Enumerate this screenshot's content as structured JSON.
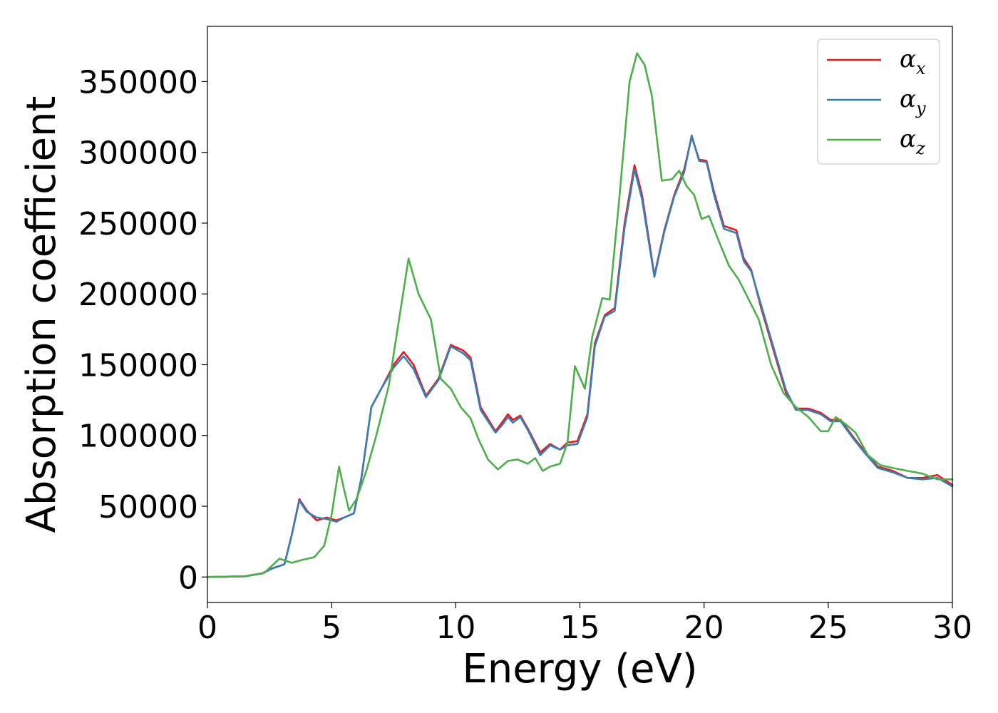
{
  "chart_data": {
    "type": "line",
    "title": "",
    "xlabel": "Energy (eV)",
    "ylabel": "Absorption coefficient",
    "xlim": [
      0,
      30
    ],
    "ylim": [
      -18000,
      389000
    ],
    "xticks": [
      0,
      5,
      10,
      15,
      20,
      25,
      30
    ],
    "xtick_labels": [
      "0",
      "5",
      "10",
      "15",
      "20",
      "25",
      "30"
    ],
    "yticks": [
      0,
      50000,
      100000,
      150000,
      200000,
      250000,
      300000,
      350000
    ],
    "ytick_labels": [
      "0",
      "50000",
      "100000",
      "150000",
      "200000",
      "250000",
      "300000",
      "350000"
    ],
    "grid": false,
    "legend_position": "top-right",
    "series": [
      {
        "name": "αx",
        "legend_base": "α",
        "legend_sub": "x",
        "color": "#e41a1c",
        "points": [
          [
            0,
            0
          ],
          [
            1.5,
            500
          ],
          [
            2.2,
            2500
          ],
          [
            2.6,
            6000
          ],
          [
            3.1,
            9000
          ],
          [
            3.4,
            30000
          ],
          [
            3.7,
            55000
          ],
          [
            4.0,
            47000
          ],
          [
            4.4,
            40000
          ],
          [
            4.8,
            42000
          ],
          [
            5.2,
            40000
          ],
          [
            5.5,
            42000
          ],
          [
            5.9,
            45000
          ],
          [
            6.2,
            70000
          ],
          [
            6.6,
            120000
          ],
          [
            7.0,
            133000
          ],
          [
            7.5,
            150000
          ],
          [
            7.9,
            159000
          ],
          [
            8.3,
            150000
          ],
          [
            8.8,
            128000
          ],
          [
            9.3,
            140000
          ],
          [
            9.8,
            164000
          ],
          [
            10.3,
            160000
          ],
          [
            10.6,
            155000
          ],
          [
            11.0,
            120000
          ],
          [
            11.6,
            103000
          ],
          [
            11.9,
            110000
          ],
          [
            12.1,
            115000
          ],
          [
            12.3,
            111000
          ],
          [
            12.6,
            114000
          ],
          [
            12.9,
            105000
          ],
          [
            13.4,
            88000
          ],
          [
            13.8,
            94000
          ],
          [
            14.2,
            90000
          ],
          [
            14.5,
            95000
          ],
          [
            14.9,
            96000
          ],
          [
            15.3,
            115000
          ],
          [
            15.6,
            165000
          ],
          [
            16.0,
            185000
          ],
          [
            16.4,
            190000
          ],
          [
            16.8,
            250000
          ],
          [
            17.2,
            291000
          ],
          [
            17.5,
            270000
          ],
          [
            18.0,
            213000
          ],
          [
            18.4,
            245000
          ],
          [
            18.8,
            270000
          ],
          [
            19.2,
            288000
          ],
          [
            19.5,
            311000
          ],
          [
            19.8,
            295000
          ],
          [
            20.1,
            294000
          ],
          [
            20.4,
            272000
          ],
          [
            20.8,
            248000
          ],
          [
            21.3,
            245000
          ],
          [
            21.6,
            225000
          ],
          [
            21.9,
            217000
          ],
          [
            22.3,
            190000
          ],
          [
            22.8,
            160000
          ],
          [
            23.3,
            130000
          ],
          [
            23.7,
            119000
          ],
          [
            24.2,
            119000
          ],
          [
            24.7,
            116000
          ],
          [
            25.1,
            111000
          ],
          [
            25.5,
            111000
          ],
          [
            26.0,
            99000
          ],
          [
            26.5,
            88000
          ],
          [
            27.0,
            78000
          ],
          [
            27.6,
            75000
          ],
          [
            28.2,
            70000
          ],
          [
            28.8,
            70000
          ],
          [
            29.4,
            72000
          ],
          [
            30,
            65000
          ]
        ]
      },
      {
        "name": "αy",
        "legend_base": "α",
        "legend_sub": "y",
        "color": "#377eb8",
        "points": [
          [
            0,
            0
          ],
          [
            1.5,
            500
          ],
          [
            2.2,
            2500
          ],
          [
            2.6,
            6000
          ],
          [
            3.1,
            9000
          ],
          [
            3.4,
            30000
          ],
          [
            3.7,
            54000
          ],
          [
            4.0,
            46000
          ],
          [
            4.4,
            42000
          ],
          [
            4.8,
            41000
          ],
          [
            5.2,
            39000
          ],
          [
            5.5,
            42000
          ],
          [
            5.9,
            45000
          ],
          [
            6.2,
            70000
          ],
          [
            6.6,
            120000
          ],
          [
            7.0,
            133000
          ],
          [
            7.5,
            148000
          ],
          [
            7.9,
            156000
          ],
          [
            8.3,
            147000
          ],
          [
            8.8,
            127000
          ],
          [
            9.3,
            139000
          ],
          [
            9.8,
            163000
          ],
          [
            10.3,
            158000
          ],
          [
            10.6,
            153000
          ],
          [
            11.0,
            118000
          ],
          [
            11.6,
            102000
          ],
          [
            11.9,
            108000
          ],
          [
            12.1,
            113000
          ],
          [
            12.3,
            109000
          ],
          [
            12.6,
            113000
          ],
          [
            12.9,
            104000
          ],
          [
            13.4,
            86000
          ],
          [
            13.8,
            93000
          ],
          [
            14.2,
            90000
          ],
          [
            14.5,
            93000
          ],
          [
            14.9,
            94000
          ],
          [
            15.3,
            113000
          ],
          [
            15.6,
            163000
          ],
          [
            16.0,
            184000
          ],
          [
            16.4,
            188000
          ],
          [
            16.8,
            247000
          ],
          [
            17.2,
            288000
          ],
          [
            17.5,
            267000
          ],
          [
            18.0,
            212000
          ],
          [
            18.4,
            244000
          ],
          [
            18.8,
            269000
          ],
          [
            19.2,
            286000
          ],
          [
            19.5,
            312000
          ],
          [
            19.8,
            294000
          ],
          [
            20.1,
            293000
          ],
          [
            20.4,
            270000
          ],
          [
            20.8,
            246000
          ],
          [
            21.3,
            243000
          ],
          [
            21.6,
            223000
          ],
          [
            21.9,
            216000
          ],
          [
            22.3,
            192000
          ],
          [
            22.8,
            162000
          ],
          [
            23.3,
            132000
          ],
          [
            23.7,
            118000
          ],
          [
            24.2,
            118000
          ],
          [
            24.7,
            115000
          ],
          [
            25.1,
            110000
          ],
          [
            25.5,
            110000
          ],
          [
            26.0,
            98000
          ],
          [
            26.5,
            87000
          ],
          [
            27.0,
            77000
          ],
          [
            27.6,
            74000
          ],
          [
            28.2,
            70000
          ],
          [
            28.8,
            69000
          ],
          [
            29.4,
            70000
          ],
          [
            30,
            64000
          ]
        ]
      },
      {
        "name": "αz",
        "legend_base": "α",
        "legend_sub": "z",
        "color": "#4daf4a",
        "points": [
          [
            0,
            0
          ],
          [
            1.5,
            500
          ],
          [
            2.3,
            3000
          ],
          [
            2.9,
            13000
          ],
          [
            3.4,
            10000
          ],
          [
            3.8,
            12000
          ],
          [
            4.3,
            14000
          ],
          [
            4.7,
            22000
          ],
          [
            5.0,
            44000
          ],
          [
            5.3,
            78000
          ],
          [
            5.5,
            62000
          ],
          [
            5.7,
            47000
          ],
          [
            6.0,
            55000
          ],
          [
            6.4,
            75000
          ],
          [
            6.8,
            100000
          ],
          [
            7.3,
            135000
          ],
          [
            7.7,
            180000
          ],
          [
            8.1,
            225000
          ],
          [
            8.5,
            200000
          ],
          [
            9.0,
            182000
          ],
          [
            9.4,
            140000
          ],
          [
            9.8,
            133000
          ],
          [
            10.2,
            120000
          ],
          [
            10.6,
            112000
          ],
          [
            10.9,
            98000
          ],
          [
            11.3,
            83000
          ],
          [
            11.7,
            76000
          ],
          [
            12.1,
            82000
          ],
          [
            12.5,
            83000
          ],
          [
            12.9,
            80000
          ],
          [
            13.2,
            84000
          ],
          [
            13.5,
            75000
          ],
          [
            13.8,
            78000
          ],
          [
            14.2,
            80000
          ],
          [
            14.5,
            95000
          ],
          [
            14.8,
            149000
          ],
          [
            15.2,
            133000
          ],
          [
            15.5,
            170000
          ],
          [
            15.9,
            197000
          ],
          [
            16.2,
            196000
          ],
          [
            16.6,
            270000
          ],
          [
            17.0,
            350000
          ],
          [
            17.3,
            370000
          ],
          [
            17.6,
            362000
          ],
          [
            17.9,
            340000
          ],
          [
            18.3,
            280000
          ],
          [
            18.7,
            281000
          ],
          [
            19.0,
            287000
          ],
          [
            19.3,
            276000
          ],
          [
            19.6,
            270000
          ],
          [
            19.9,
            253000
          ],
          [
            20.2,
            255000
          ],
          [
            20.6,
            237000
          ],
          [
            21.0,
            220000
          ],
          [
            21.4,
            210000
          ],
          [
            21.8,
            196000
          ],
          [
            22.2,
            182000
          ],
          [
            22.7,
            150000
          ],
          [
            23.2,
            130000
          ],
          [
            23.7,
            120000
          ],
          [
            24.2,
            113000
          ],
          [
            24.7,
            103000
          ],
          [
            25.0,
            103000
          ],
          [
            25.3,
            113000
          ],
          [
            25.7,
            108000
          ],
          [
            26.1,
            102000
          ],
          [
            26.6,
            86000
          ],
          [
            27.1,
            79000
          ],
          [
            27.6,
            77000
          ],
          [
            28.2,
            75000
          ],
          [
            28.8,
            73000
          ],
          [
            29.4,
            69000
          ],
          [
            30,
            69000
          ]
        ]
      }
    ]
  }
}
